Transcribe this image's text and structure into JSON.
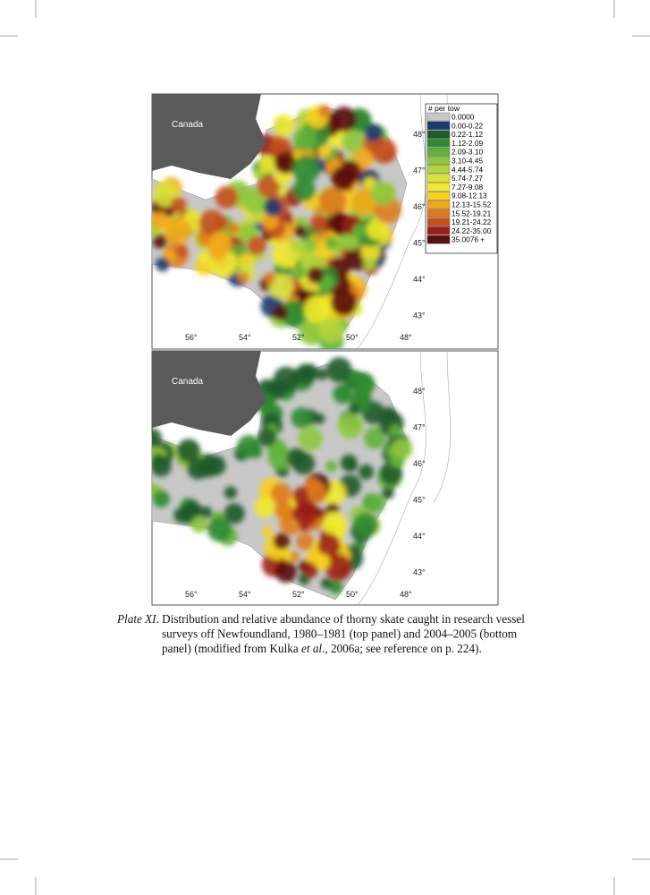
{
  "legend": {
    "title": "# per tow",
    "entries": [
      {
        "label": "0.0000",
        "color": "#c8c8c8"
      },
      {
        "label": "0.00-0.22",
        "color": "#1e3a6e"
      },
      {
        "label": "0.22-1.12",
        "color": "#1f5a2a"
      },
      {
        "label": "1.12-2.09",
        "color": "#2f8a30"
      },
      {
        "label": "2.09-3.10",
        "color": "#5fb33a"
      },
      {
        "label": "3.10-4.45",
        "color": "#8ec63f"
      },
      {
        "label": "4.44-5.74",
        "color": "#b5d43a"
      },
      {
        "label": "5.74-7.27",
        "color": "#d9e23a"
      },
      {
        "label": "7.27-9.08",
        "color": "#f2ea2c"
      },
      {
        "label": "9.08-12.13",
        "color": "#f7d21e"
      },
      {
        "label": "12.13-15.52",
        "color": "#f3a81c"
      },
      {
        "label": "15.52-19.21",
        "color": "#e07a1c"
      },
      {
        "label": "19.21-24.22",
        "color": "#c4501e"
      },
      {
        "label": "24.22-35.00",
        "color": "#9b1f1a"
      },
      {
        "label": "35.0076 +",
        "color": "#5a0f10"
      }
    ]
  },
  "panels": [
    {
      "land_label": "Canada",
      "lat_labels": [
        "48°",
        "47°",
        "46°",
        "45°",
        "44°",
        "43°"
      ],
      "lon_labels": [
        "56°",
        "54°",
        "52°",
        "50°",
        "48°"
      ]
    },
    {
      "land_label": "Canada",
      "lat_labels": [
        "48°",
        "47°",
        "46°",
        "45°",
        "44°",
        "43°"
      ],
      "lon_labels": [
        "56°",
        "54°",
        "52°",
        "50°",
        "48°"
      ]
    }
  ],
  "caption": {
    "lines": [
      [
        {
          "text": "Plate XI",
          "italic": true
        },
        {
          "text": ". Distribution and relative abundance of thorny skate caught in research vessel",
          "italic": false
        }
      ],
      [
        {
          "text": "surveys off Newfoundland, 1980–1981 (top panel) and 2004–2005 (bottom",
          "italic": false
        }
      ],
      [
        {
          "text": "panel)  (modified from Kulka ",
          "italic": false
        },
        {
          "text": "et al",
          "italic": true
        },
        {
          "text": "., 2006a; see reference on p. 224).",
          "italic": false
        }
      ]
    ]
  }
}
